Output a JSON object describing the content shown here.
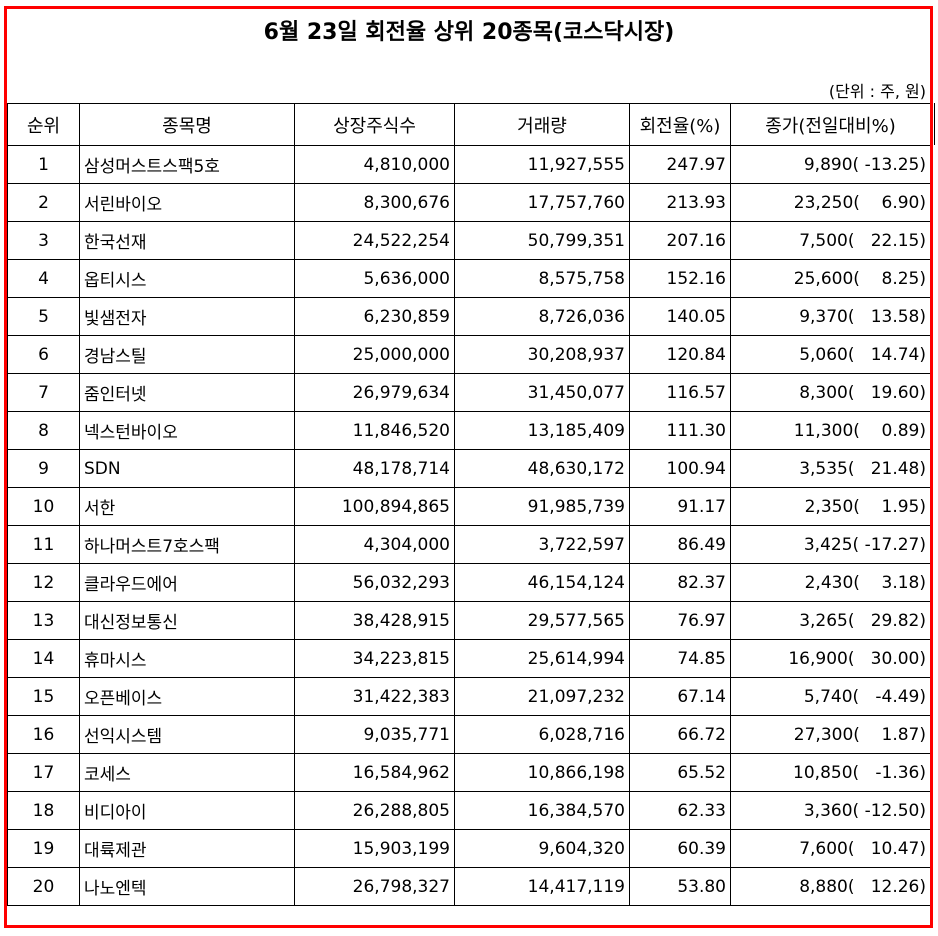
{
  "title": "6월 23일 회전율 상위 20종목(코스닥시장)",
  "unit_note": "(단위 : 주, 원)",
  "colors": {
    "frame": "#ff0000",
    "grid": "#000000"
  },
  "columns": [
    "순위",
    "종목명",
    "상장주식수",
    "거래량",
    "회전율(%)",
    "종가(전일대비%)"
  ],
  "rows": [
    {
      "rank": "1",
      "name": "삼성머스트스팩5호",
      "listed": "4,810,000",
      "volume": "11,927,555",
      "turnover": "247.97",
      "close": "9,890( -13.25)"
    },
    {
      "rank": "2",
      "name": "서린바이오",
      "listed": "8,300,676",
      "volume": "17,757,760",
      "turnover": "213.93",
      "close": "23,250(    6.90)"
    },
    {
      "rank": "3",
      "name": "한국선재",
      "listed": "24,522,254",
      "volume": "50,799,351",
      "turnover": "207.16",
      "close": "7,500(   22.15)"
    },
    {
      "rank": "4",
      "name": "옵티시스",
      "listed": "5,636,000",
      "volume": "8,575,758",
      "turnover": "152.16",
      "close": "25,600(    8.25)"
    },
    {
      "rank": "5",
      "name": "빛샘전자",
      "listed": "6,230,859",
      "volume": "8,726,036",
      "turnover": "140.05",
      "close": "9,370(   13.58)"
    },
    {
      "rank": "6",
      "name": "경남스틸",
      "listed": "25,000,000",
      "volume": "30,208,937",
      "turnover": "120.84",
      "close": "5,060(   14.74)"
    },
    {
      "rank": "7",
      "name": "줌인터넷",
      "listed": "26,979,634",
      "volume": "31,450,077",
      "turnover": "116.57",
      "close": "8,300(   19.60)"
    },
    {
      "rank": "8",
      "name": "넥스턴바이오",
      "listed": "11,846,520",
      "volume": "13,185,409",
      "turnover": "111.30",
      "close": "11,300(    0.89)"
    },
    {
      "rank": "9",
      "name": "SDN",
      "listed": "48,178,714",
      "volume": "48,630,172",
      "turnover": "100.94",
      "close": "3,535(   21.48)"
    },
    {
      "rank": "10",
      "name": "서한",
      "listed": "100,894,865",
      "volume": "91,985,739",
      "turnover": "91.17",
      "close": "2,350(    1.95)"
    },
    {
      "rank": "11",
      "name": "하나머스트7호스팩",
      "listed": "4,304,000",
      "volume": "3,722,597",
      "turnover": "86.49",
      "close": "3,425( -17.27)"
    },
    {
      "rank": "12",
      "name": "클라우드에어",
      "listed": "56,032,293",
      "volume": "46,154,124",
      "turnover": "82.37",
      "close": "2,430(    3.18)"
    },
    {
      "rank": "13",
      "name": "대신정보통신",
      "listed": "38,428,915",
      "volume": "29,577,565",
      "turnover": "76.97",
      "close": "3,265(   29.82)"
    },
    {
      "rank": "14",
      "name": "휴마시스",
      "listed": "34,223,815",
      "volume": "25,614,994",
      "turnover": "74.85",
      "close": "16,900(   30.00)"
    },
    {
      "rank": "15",
      "name": "오픈베이스",
      "listed": "31,422,383",
      "volume": "21,097,232",
      "turnover": "67.14",
      "close": "5,740(   -4.49)"
    },
    {
      "rank": "16",
      "name": "선익시스템",
      "listed": "9,035,771",
      "volume": "6,028,716",
      "turnover": "66.72",
      "close": "27,300(    1.87)"
    },
    {
      "rank": "17",
      "name": "코세스",
      "listed": "16,584,962",
      "volume": "10,866,198",
      "turnover": "65.52",
      "close": "10,850(   -1.36)"
    },
    {
      "rank": "18",
      "name": "비디아이",
      "listed": "26,288,805",
      "volume": "16,384,570",
      "turnover": "62.33",
      "close": "3,360( -12.50)"
    },
    {
      "rank": "19",
      "name": "대륙제관",
      "listed": "15,903,199",
      "volume": "9,604,320",
      "turnover": "60.39",
      "close": "7,600(   10.47)"
    },
    {
      "rank": "20",
      "name": "나노엔텍",
      "listed": "26,798,327",
      "volume": "14,417,119",
      "turnover": "53.80",
      "close": "8,880(   12.26)"
    }
  ]
}
